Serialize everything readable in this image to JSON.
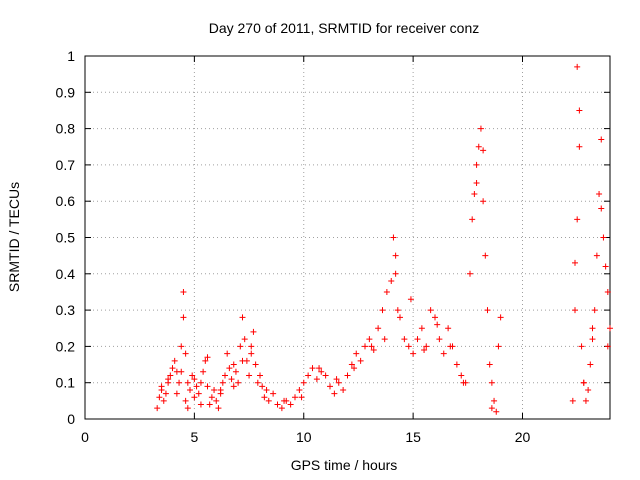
{
  "chart_data": {
    "type": "scatter",
    "title": "Day 270 of 2011, SRMTID for receiver conz",
    "xlabel": "GPS time / hours",
    "ylabel": "SRMTID / TECUs",
    "xlim": [
      0,
      24
    ],
    "ylim": [
      0,
      1
    ],
    "xticks": [
      0,
      5,
      10,
      15,
      20
    ],
    "xtick_labels": [
      "0",
      "5",
      "10",
      "15",
      "20"
    ],
    "yticks": [
      0,
      0.1,
      0.2,
      0.3,
      0.4,
      0.5,
      0.6,
      0.7,
      0.8,
      0.9,
      1
    ],
    "ytick_labels": [
      "0",
      "0.1",
      "0.2",
      "0.3",
      "0.4",
      "0.5",
      "0.6",
      "0.7",
      "0.8",
      "0.9",
      "1"
    ],
    "grid": true,
    "marker": "+",
    "color": "#ff0000",
    "series": [
      {
        "name": "SRMTID",
        "x": [
          3.3,
          3.4,
          3.5,
          3.6,
          3.7,
          3.8,
          3.9,
          4.0,
          4.1,
          4.2,
          4.3,
          4.4,
          4.5,
          4.5,
          4.6,
          4.6,
          4.7,
          4.8,
          4.9,
          5.0,
          5.1,
          5.2,
          5.3,
          5.4,
          5.5,
          5.6,
          5.7,
          5.8,
          5.9,
          6.0,
          6.1,
          6.2,
          6.3,
          6.4,
          6.5,
          6.6,
          6.7,
          6.8,
          6.9,
          7.0,
          7.1,
          7.2,
          7.3,
          7.4,
          7.5,
          7.6,
          7.7,
          7.8,
          7.9,
          8.0,
          8.1,
          8.2,
          8.4,
          8.6,
          8.8,
          9.0,
          9.2,
          9.4,
          9.6,
          9.8,
          10.0,
          10.2,
          10.4,
          10.6,
          10.8,
          11.0,
          11.2,
          11.4,
          11.6,
          11.8,
          12.0,
          12.2,
          12.4,
          12.6,
          12.8,
          13.0,
          13.2,
          13.4,
          13.6,
          13.8,
          14.0,
          14.1,
          14.2,
          14.3,
          14.4,
          14.6,
          14.8,
          15.0,
          15.2,
          15.4,
          15.6,
          15.8,
          16.0,
          16.2,
          16.4,
          16.6,
          16.8,
          17.0,
          17.2,
          17.4,
          17.6,
          17.7,
          17.8,
          17.9,
          18.0,
          18.1,
          18.2,
          18.3,
          18.4,
          18.5,
          18.6,
          18.7,
          18.8,
          18.9,
          19.0,
          22.3,
          22.4,
          22.5,
          22.5,
          22.6,
          22.6,
          22.7,
          22.8,
          22.9,
          23.0,
          23.1,
          23.2,
          23.3,
          23.4,
          23.5,
          23.6,
          23.7,
          23.8,
          23.9,
          24.0,
          3.5,
          3.8,
          4.2,
          4.4,
          4.7,
          5.0,
          5.3,
          5.6,
          6.2,
          6.8,
          7.2,
          7.6,
          8.3,
          9.1,
          9.9,
          10.7,
          11.5,
          12.3,
          13.1,
          13.7,
          14.2,
          14.9,
          15.5,
          16.1,
          16.7,
          17.3,
          17.9,
          18.2,
          18.6,
          22.4,
          22.8,
          23.2,
          23.6,
          23.9
        ],
        "y": [
          0.03,
          0.06,
          0.08,
          0.05,
          0.07,
          0.1,
          0.12,
          0.14,
          0.16,
          0.13,
          0.1,
          0.2,
          0.35,
          0.28,
          0.18,
          0.05,
          0.1,
          0.08,
          0.12,
          0.06,
          0.09,
          0.07,
          0.1,
          0.13,
          0.16,
          0.09,
          0.04,
          0.06,
          0.08,
          0.05,
          0.03,
          0.07,
          0.1,
          0.12,
          0.18,
          0.14,
          0.11,
          0.15,
          0.13,
          0.1,
          0.2,
          0.28,
          0.22,
          0.16,
          0.12,
          0.18,
          0.24,
          0.15,
          0.1,
          0.12,
          0.09,
          0.06,
          0.05,
          0.07,
          0.04,
          0.03,
          0.05,
          0.04,
          0.06,
          0.08,
          0.1,
          0.12,
          0.14,
          0.11,
          0.13,
          0.12,
          0.09,
          0.07,
          0.1,
          0.08,
          0.12,
          0.15,
          0.18,
          0.16,
          0.2,
          0.22,
          0.19,
          0.25,
          0.3,
          0.35,
          0.38,
          0.5,
          0.45,
          0.3,
          0.28,
          0.22,
          0.2,
          0.18,
          0.22,
          0.25,
          0.2,
          0.3,
          0.28,
          0.22,
          0.18,
          0.25,
          0.2,
          0.15,
          0.12,
          0.1,
          0.4,
          0.55,
          0.62,
          0.7,
          0.75,
          0.8,
          0.6,
          0.45,
          0.3,
          0.15,
          0.1,
          0.05,
          0.02,
          0.2,
          0.28,
          0.05,
          0.3,
          0.55,
          0.97,
          0.85,
          0.75,
          0.2,
          0.1,
          0.05,
          0.08,
          0.15,
          0.22,
          0.3,
          0.45,
          0.62,
          0.77,
          0.5,
          0.42,
          0.35,
          0.25,
          0.09,
          0.11,
          0.07,
          0.13,
          0.03,
          0.11,
          0.04,
          0.17,
          0.08,
          0.09,
          0.16,
          0.2,
          0.08,
          0.05,
          0.06,
          0.14,
          0.11,
          0.14,
          0.2,
          0.22,
          0.4,
          0.33,
          0.19,
          0.26,
          0.2,
          0.1,
          0.65,
          0.74,
          0.03,
          0.43,
          0.1,
          0.25,
          0.58,
          0.2
        ]
      }
    ]
  }
}
